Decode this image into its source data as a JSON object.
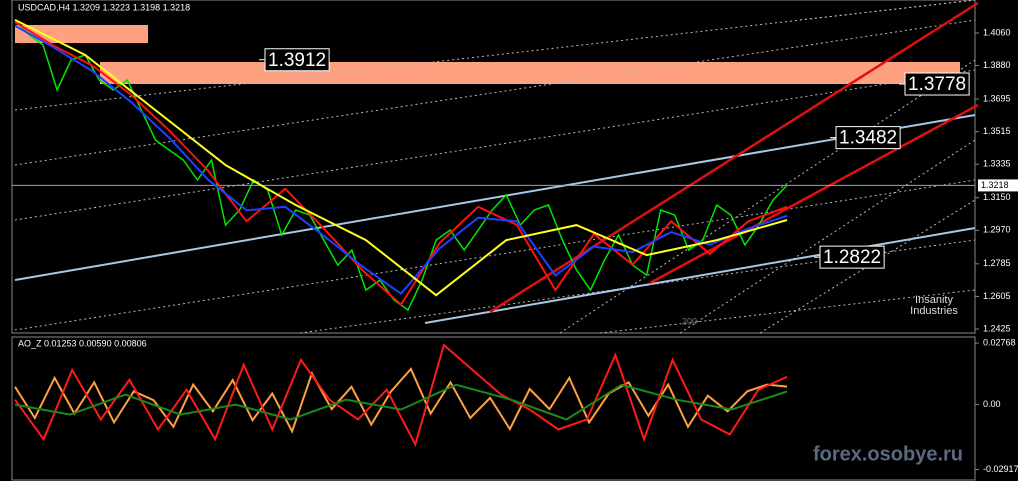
{
  "chart_data": [
    {
      "type": "line",
      "title": "USDCAD,H4  1.3209 1.3223 1.3198 1.3218",
      "ylim": [
        1.2403,
        1.4242
      ],
      "yticks": [
        {
          "value": 1.406,
          "label": "1.4060"
        },
        {
          "value": 1.388,
          "label": "1.3880"
        },
        1.3695,
        1.3515,
        1.3335,
        {
          "value": 1.315,
          "label": "1.3150"
        },
        {
          "value": 1.297,
          "label": "1.2970"
        },
        1.2785,
        1.2605,
        1.2425
      ],
      "last_price": 1.3218,
      "levels": [
        1.3912,
        1.3778,
        1.3482,
        1.2822
      ],
      "annotations": [
        "200",
        "Insanity",
        "Industries"
      ],
      "series": [
        {
          "name": "Price",
          "color": "#00e600",
          "values": [
            1.4132,
            1.4049,
            1.3993,
            1.3745,
            1.3911,
            1.3938,
            1.38,
            1.3745,
            1.38,
            1.3634,
            1.3469,
            1.3413,
            1.3358,
            1.3248,
            1.3358,
            1.2999,
            1.3082,
            1.3248,
            1.3192,
            1.2944,
            1.3082,
            1.3054,
            1.2916,
            1.2778,
            1.2861,
            1.264,
            1.2695,
            1.2585,
            1.253,
            1.2695,
            1.2916,
            1.2971,
            1.2861,
            1.2971,
            1.3082,
            1.3165,
            1.2999,
            1.3082,
            1.311,
            1.2916,
            1.2751,
            1.264,
            1.2806,
            1.2944,
            1.2778,
            1.2723,
            1.3082,
            1.3054,
            1.2861,
            1.2916,
            1.311,
            1.3054,
            1.2889,
            1.2999,
            1.3137,
            1.3218
          ]
        },
        {
          "name": "MA fast",
          "color": "#ff1010",
          "values": [
            1.412,
            1.399,
            1.388,
            1.372,
            1.352,
            1.33,
            1.302,
            1.32,
            1.298,
            1.275,
            1.256,
            1.29,
            1.31,
            1.3,
            1.264,
            1.295,
            1.278,
            1.302,
            1.284,
            1.302,
            1.31
          ]
        },
        {
          "name": "MA mid",
          "color": "#2040ff",
          "values": [
            1.41,
            1.398,
            1.385,
            1.368,
            1.348,
            1.325,
            1.308,
            1.31,
            1.294,
            1.277,
            1.262,
            1.287,
            1.304,
            1.302,
            1.272,
            1.288,
            1.285,
            1.296,
            1.289,
            1.298,
            1.305
          ]
        },
        {
          "name": "MA slow",
          "color": "#ffff20",
          "values": [
            1.4132,
            1.3938,
            1.3634,
            1.3331,
            1.311,
            1.2916,
            1.2612,
            1.2916,
            1.2999,
            1.2833,
            1.2916,
            1.3027
          ]
        }
      ]
    },
    {
      "type": "line",
      "title": "AO_Z 0.01253 0.00590 0.00806",
      "ylim": [
        -0.0339,
        0.0304
      ],
      "yticks": [
        0.02768,
        {
          "value": 0,
          "label": "0.00"
        },
        -0.02917
      ],
      "series": [
        {
          "name": "AO_Z",
          "color": "#ffa040",
          "values": [
            0.008,
            -0.006,
            0.012,
            -0.004,
            0.01,
            -0.008,
            0.006,
            0.002,
            -0.01,
            0.009,
            -0.003,
            0.011,
            -0.007,
            0.005,
            -0.012,
            0.014,
            -0.002,
            0.008,
            -0.009,
            0.006,
            0.016,
            -0.004,
            0.01,
            -0.006,
            0.003,
            -0.011,
            0.007,
            -0.002,
            0.012,
            -0.008,
            0.005,
            0.01,
            -0.005,
            0.009,
            -0.01,
            0.004,
            -0.003,
            0.006,
            0.009,
            0.0081
          ]
        },
        {
          "name": "AO_Z red",
          "color": "#ff1a1a",
          "values": [
            0.0022,
            -0.0156,
            0.0156,
            -0.0067,
            0.0112,
            -0.0112,
            0.0067,
            -0.0156,
            0.0179,
            -0.0112,
            0.0201,
            0.0022,
            -0.0067,
            0.0067,
            -0.0179,
            0.0268,
            0.0156,
            0.0045,
            -0.0022,
            -0.0112,
            -0.0067,
            0.0223,
            -0.0156,
            0.0201,
            -0.0067,
            -0.0134,
            0.0067,
            0.0125
          ]
        },
        {
          "name": "AO_Z green",
          "color": "#1a8a1a",
          "values": [
            0,
            -0.0045,
            0.0045,
            -0.0045,
            0,
            -0.0067,
            0.0022,
            -0.0022,
            0.0089,
            0.0022,
            -0.0067,
            0.0089,
            0.0022,
            -0.0022,
            0.0059
          ]
        }
      ]
    }
  ],
  "watermark": "forex.osobye.ru"
}
